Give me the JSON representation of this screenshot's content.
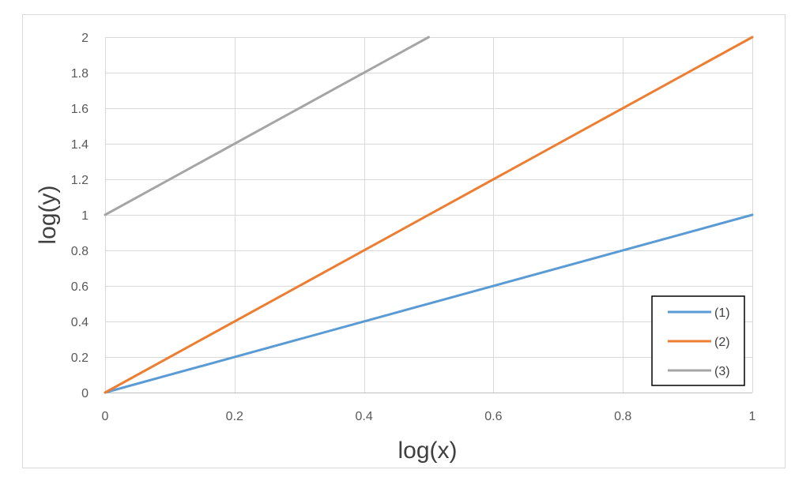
{
  "chart_data": {
    "type": "line",
    "title": "",
    "xlabel": "log(x)",
    "ylabel": "log(y)",
    "xlim": [
      0,
      1
    ],
    "ylim": [
      0,
      2
    ],
    "x_ticks": [
      "0",
      "0.2",
      "0.4",
      "0.6",
      "0.8",
      "1"
    ],
    "y_ticks": [
      "0",
      "0.2",
      "0.4",
      "0.6",
      "0.8",
      "1",
      "1.2",
      "1.4",
      "1.6",
      "1.8",
      "2"
    ],
    "grid": true,
    "legend_position": "bottom-right",
    "series": [
      {
        "name": "(1)",
        "color": "#5B9BD5",
        "x": [
          0,
          1
        ],
        "y": [
          0,
          1
        ]
      },
      {
        "name": "(2)",
        "color": "#ED7D31",
        "x": [
          0,
          1
        ],
        "y": [
          0,
          2
        ]
      },
      {
        "name": "(3)",
        "color": "#A5A5A5",
        "x": [
          0,
          0.5
        ],
        "y": [
          1,
          2
        ]
      }
    ]
  }
}
